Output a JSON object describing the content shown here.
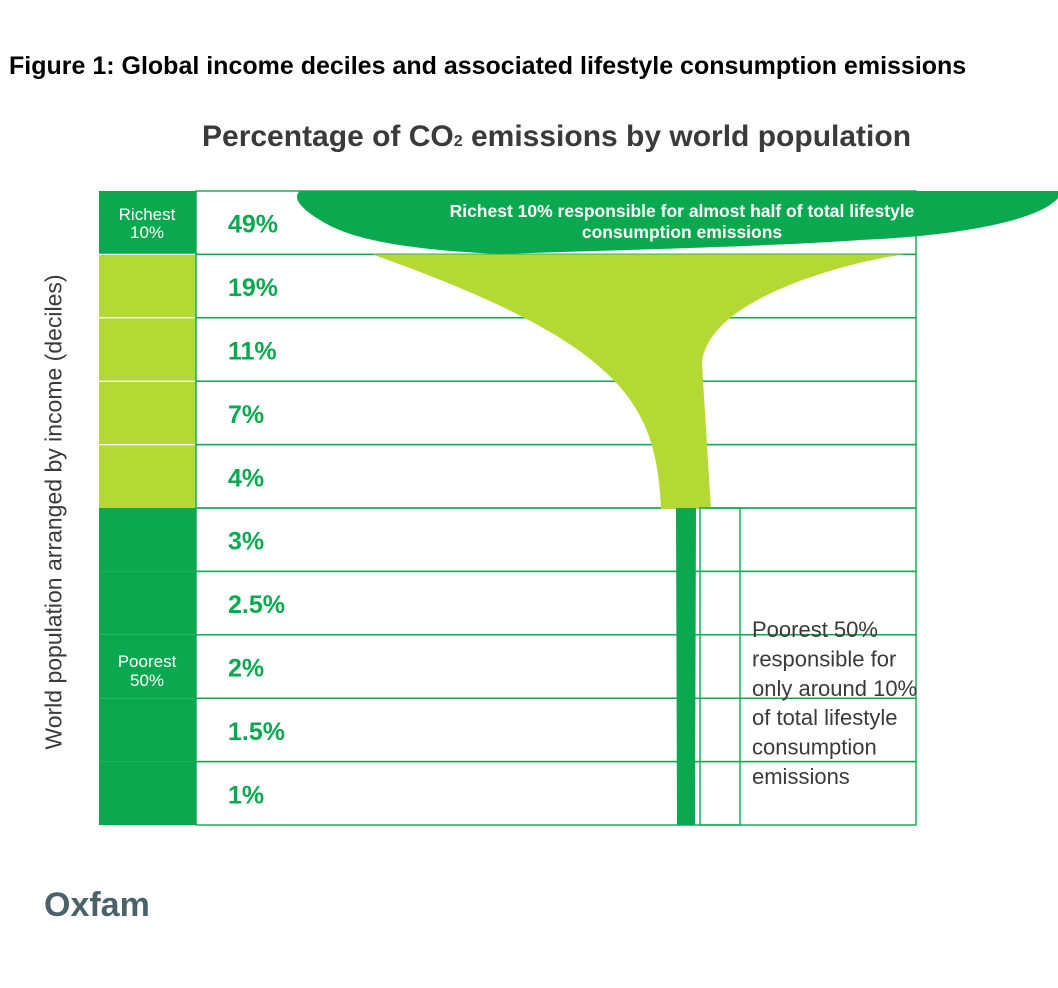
{
  "figure_title": "Figure 1: Global income deciles and associated lifestyle consumption emissions",
  "source": "Oxfam",
  "colors": {
    "dark_green": "#0aa84f",
    "light_green": "#b5d934",
    "row_border": "#0aa84f"
  },
  "chart_data": {
    "type": "bar",
    "title_parts": [
      "Percentage of CO",
      "2",
      " emissions by world population"
    ],
    "ylabel": "World population arranged by income (deciles)",
    "group_labels": [
      {
        "lines": [
          "Richest",
          "10%"
        ]
      },
      {
        "lines": [
          "Poorest",
          "50%"
        ]
      }
    ],
    "values": [
      49,
      19,
      11,
      7,
      4,
      3,
      2.5,
      2,
      1.5,
      1
    ],
    "value_labels": [
      "49%",
      "19%",
      "11%",
      "7%",
      "4%",
      "3%",
      "2.5%",
      "2%",
      "1.5%",
      "1%"
    ],
    "annotations": {
      "richest": [
        "Richest 10% responsible for almost half of total lifestyle",
        "consumption emissions"
      ],
      "poorest": [
        "Poorest 50%",
        "responsible for",
        "only around 10%",
        "of total lifestyle",
        "consumption",
        "emissions"
      ]
    }
  }
}
